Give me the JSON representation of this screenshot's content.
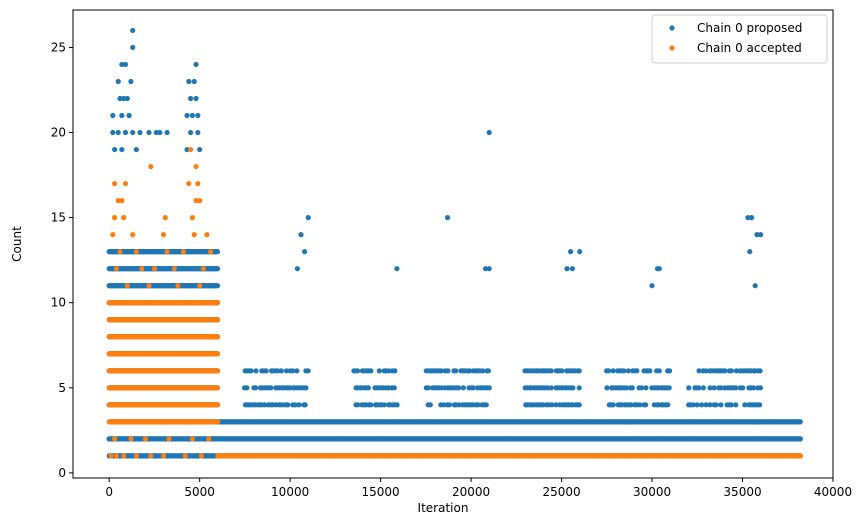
{
  "chart_data": {
    "type": "scatter",
    "xlabel": "Iteration",
    "ylabel": "Count",
    "xlim": [
      -2000,
      40000
    ],
    "ylim": [
      -0.3,
      27.2
    ],
    "x_ticks": [
      0,
      5000,
      10000,
      15000,
      20000,
      25000,
      30000,
      35000,
      40000
    ],
    "y_ticks": [
      0,
      5,
      10,
      15,
      20,
      25
    ],
    "legend_position": "top-right",
    "grid": false,
    "series": [
      {
        "name": "Chain 0 proposed",
        "color": "#1f77b4",
        "bands": [
          {
            "x": [
              0,
              6000
            ],
            "y": [
              1,
              13
            ],
            "density": "high"
          },
          {
            "x": [
              6000,
              38200
            ],
            "y": [
              1,
              3
            ],
            "density": "high"
          },
          {
            "x": [
              7500,
              11000
            ],
            "y": [
              4,
              6
            ],
            "density": "medium"
          },
          {
            "x": [
              13500,
              16000
            ],
            "y": [
              4,
              6
            ],
            "density": "medium"
          },
          {
            "x": [
              17500,
              21000
            ],
            "y": [
              4,
              6
            ],
            "density": "medium"
          },
          {
            "x": [
              23000,
              26000
            ],
            "y": [
              4,
              6
            ],
            "density": "medium"
          },
          {
            "x": [
              27500,
              31000
            ],
            "y": [
              4,
              6
            ],
            "density": "medium"
          },
          {
            "x": [
              32000,
              36000
            ],
            "y": [
              4,
              6
            ],
            "density": "medium"
          }
        ],
        "points": [
          [
            1300,
            26
          ],
          [
            1300,
            25
          ],
          [
            4800,
            24
          ],
          [
            700,
            24
          ],
          [
            900,
            24
          ],
          [
            4400,
            23
          ],
          [
            4700,
            23
          ],
          [
            1200,
            23
          ],
          [
            500,
            23
          ],
          [
            600,
            22
          ],
          [
            800,
            22
          ],
          [
            4500,
            22
          ],
          [
            4800,
            22
          ],
          [
            1000,
            22
          ],
          [
            200,
            21
          ],
          [
            700,
            21
          ],
          [
            4300,
            21
          ],
          [
            4600,
            21
          ],
          [
            4900,
            21
          ],
          [
            1100,
            21
          ],
          [
            200,
            20
          ],
          [
            500,
            20
          ],
          [
            900,
            20
          ],
          [
            1300,
            20
          ],
          [
            1700,
            20
          ],
          [
            2200,
            20
          ],
          [
            2600,
            20
          ],
          [
            2800,
            20
          ],
          [
            3200,
            20
          ],
          [
            4500,
            20
          ],
          [
            4900,
            20
          ],
          [
            21000,
            20
          ],
          [
            300,
            19
          ],
          [
            700,
            19
          ],
          [
            1500,
            19
          ],
          [
            4300,
            19
          ],
          [
            5000,
            19
          ],
          [
            18700,
            15
          ],
          [
            11000,
            15
          ],
          [
            35300,
            15
          ],
          [
            35500,
            15
          ],
          [
            15900,
            12
          ],
          [
            10400,
            12
          ],
          [
            30300,
            12
          ],
          [
            30400,
            12
          ],
          [
            20800,
            12
          ],
          [
            21000,
            12
          ],
          [
            25300,
            12
          ],
          [
            25600,
            12
          ],
          [
            10600,
            14
          ],
          [
            10800,
            13
          ],
          [
            35800,
            14
          ],
          [
            36000,
            14
          ],
          [
            35400,
            13
          ],
          [
            25500,
            13
          ],
          [
            26000,
            13
          ],
          [
            30000,
            11
          ],
          [
            35700,
            11
          ]
        ]
      },
      {
        "name": "Chain 0 accepted",
        "color": "#ff7f0e",
        "bands": [
          {
            "x": [
              0,
              6000
            ],
            "y": [
              3,
              10
            ],
            "density": "high"
          },
          {
            "x": [
              6000,
              38200
            ],
            "y": [
              1,
              1
            ],
            "density": "high"
          }
        ],
        "points": [
          [
            100,
            1
          ],
          [
            400,
            1
          ],
          [
            800,
            1
          ],
          [
            1500,
            1
          ],
          [
            2300,
            1
          ],
          [
            3000,
            1
          ],
          [
            4200,
            1
          ],
          [
            5100,
            1
          ],
          [
            300,
            2
          ],
          [
            1200,
            2
          ],
          [
            2000,
            2
          ],
          [
            3300,
            2
          ],
          [
            4600,
            2
          ],
          [
            5500,
            2
          ],
          [
            300,
            15
          ],
          [
            800,
            15
          ],
          [
            3100,
            15
          ],
          [
            4600,
            15
          ],
          [
            500,
            16
          ],
          [
            700,
            16
          ],
          [
            4800,
            16
          ],
          [
            5000,
            16
          ],
          [
            300,
            17
          ],
          [
            900,
            17
          ],
          [
            4400,
            17
          ],
          [
            4900,
            17
          ],
          [
            2300,
            18
          ],
          [
            4800,
            18
          ],
          [
            4500,
            19
          ],
          [
            400,
            12
          ],
          [
            1800,
            12
          ],
          [
            2500,
            12
          ],
          [
            3600,
            12
          ],
          [
            5200,
            12
          ],
          [
            600,
            13
          ],
          [
            1500,
            13
          ],
          [
            3200,
            13
          ],
          [
            4100,
            13
          ],
          [
            5600,
            13
          ],
          [
            200,
            14
          ],
          [
            1300,
            14
          ],
          [
            3000,
            14
          ],
          [
            4700,
            14
          ],
          [
            5400,
            14
          ],
          [
            1000,
            11
          ],
          [
            2200,
            11
          ],
          [
            3800,
            11
          ],
          [
            5000,
            11
          ]
        ]
      }
    ]
  }
}
